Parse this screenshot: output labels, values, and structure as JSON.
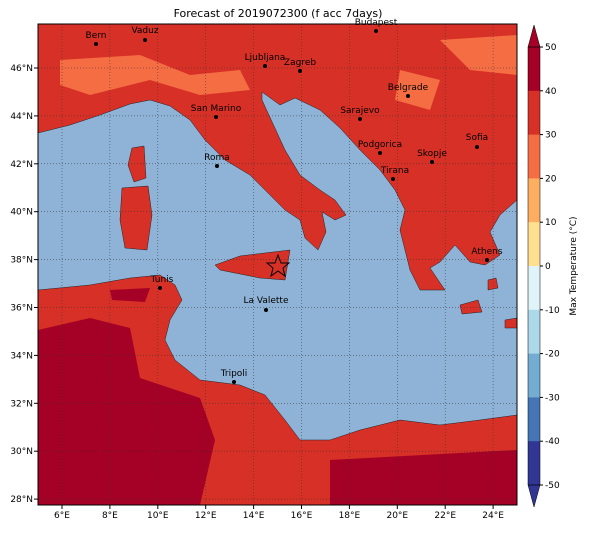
{
  "title": "Forecast of 2019072300 (f acc 7days)",
  "cities": [
    "Bern",
    "Vaduz",
    "Budapest",
    "Ljubljana",
    "Zagreb",
    "Belgrade",
    "San Marino",
    "Sarajevo",
    "Podgorica",
    "Skopje",
    "Sofia",
    "Roma",
    "Tirana",
    "Athens",
    "Tunis",
    "La Valette",
    "Tripoli"
  ],
  "x_ticks": [
    "6°E",
    "8°E",
    "10°E",
    "12°E",
    "14°E",
    "16°E",
    "18°E",
    "20°E",
    "22°E",
    "24°E"
  ],
  "y_ticks": [
    "46°N",
    "44°N",
    "42°N",
    "40°N",
    "38°N",
    "36°N",
    "34°N",
    "32°N",
    "30°N",
    "28°N"
  ],
  "colorbar": {
    "label": "Max Temperature (°C)",
    "ticks": [
      50,
      40,
      30,
      20,
      10,
      0,
      -10,
      -20,
      -30,
      -40,
      -50
    ],
    "colors": [
      "#a50026",
      "#d73027",
      "#f46d43",
      "#fdae61",
      "#fee090",
      "#e0f3f8",
      "#abd9e9",
      "#74add1",
      "#4575b4",
      "#313695"
    ]
  }
}
